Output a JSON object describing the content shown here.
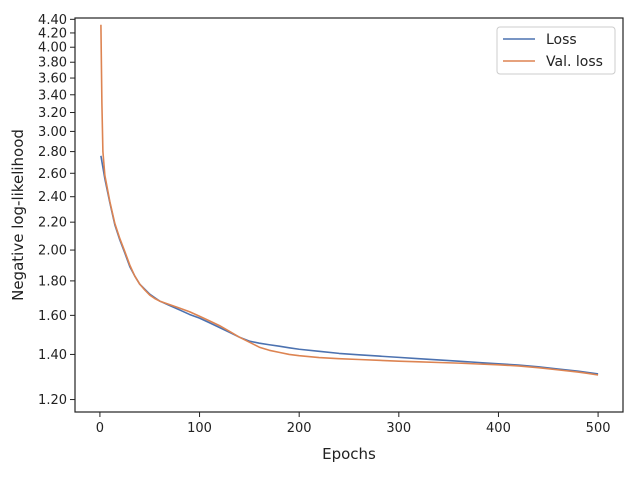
{
  "chart_data": {
    "type": "line",
    "title": "",
    "xlabel": "Epochs",
    "ylabel": "Negative log-likelihood",
    "xlim": [
      -25,
      525
    ],
    "ylim": [
      1.15,
      4.42
    ],
    "yscale": "log",
    "grid": false,
    "legend_position": "top-right",
    "x_ticks": [
      0,
      100,
      200,
      300,
      400,
      500
    ],
    "x_tick_labels": [
      "0",
      "100",
      "200",
      "300",
      "400",
      "500"
    ],
    "y_ticks": [
      1.2,
      1.4,
      1.6,
      1.8,
      2.0,
      2.2,
      2.4,
      2.6,
      2.8,
      3.0,
      3.2,
      3.4,
      3.6,
      3.8,
      4.0,
      4.2,
      4.4
    ],
    "y_tick_labels": [
      "1.20",
      "1.40",
      "1.60",
      "1.80",
      "2.00",
      "2.20",
      "2.40",
      "2.60",
      "2.80",
      "3.00",
      "3.20",
      "3.40",
      "3.60",
      "3.80",
      "4.00",
      "4.20",
      "4.40"
    ],
    "series": [
      {
        "name": "Loss",
        "color": "#4c72b0",
        "x": [
          1,
          5,
          10,
          15,
          20,
          25,
          30,
          35,
          40,
          45,
          50,
          55,
          60,
          70,
          80,
          90,
          100,
          110,
          120,
          130,
          140,
          150,
          160,
          170,
          180,
          190,
          200,
          220,
          240,
          260,
          280,
          300,
          320,
          340,
          360,
          380,
          400,
          420,
          440,
          460,
          480,
          490,
          500
        ],
        "y": [
          2.76,
          2.55,
          2.35,
          2.18,
          2.07,
          1.98,
          1.89,
          1.83,
          1.78,
          1.75,
          1.72,
          1.7,
          1.68,
          1.655,
          1.63,
          1.605,
          1.585,
          1.56,
          1.535,
          1.51,
          1.485,
          1.465,
          1.455,
          1.447,
          1.44,
          1.432,
          1.425,
          1.415,
          1.405,
          1.398,
          1.392,
          1.386,
          1.38,
          1.374,
          1.368,
          1.362,
          1.356,
          1.35,
          1.342,
          1.332,
          1.322,
          1.316,
          1.31
        ]
      },
      {
        "name": "Val. loss",
        "color": "#dd8452",
        "x": [
          1,
          2,
          3,
          5,
          10,
          15,
          20,
          25,
          30,
          35,
          40,
          45,
          50,
          55,
          60,
          70,
          80,
          90,
          100,
          110,
          120,
          130,
          140,
          150,
          160,
          170,
          180,
          190,
          200,
          220,
          240,
          260,
          280,
          300,
          320,
          340,
          360,
          380,
          400,
          420,
          440,
          460,
          480,
          490,
          500
        ],
        "y": [
          4.32,
          3.3,
          2.8,
          2.58,
          2.36,
          2.19,
          2.08,
          1.99,
          1.9,
          1.83,
          1.78,
          1.745,
          1.715,
          1.695,
          1.68,
          1.66,
          1.64,
          1.62,
          1.595,
          1.57,
          1.545,
          1.515,
          1.485,
          1.46,
          1.435,
          1.42,
          1.41,
          1.4,
          1.394,
          1.385,
          1.38,
          1.376,
          1.372,
          1.368,
          1.365,
          1.362,
          1.359,
          1.355,
          1.351,
          1.346,
          1.338,
          1.328,
          1.318,
          1.312,
          1.305
        ]
      }
    ]
  }
}
